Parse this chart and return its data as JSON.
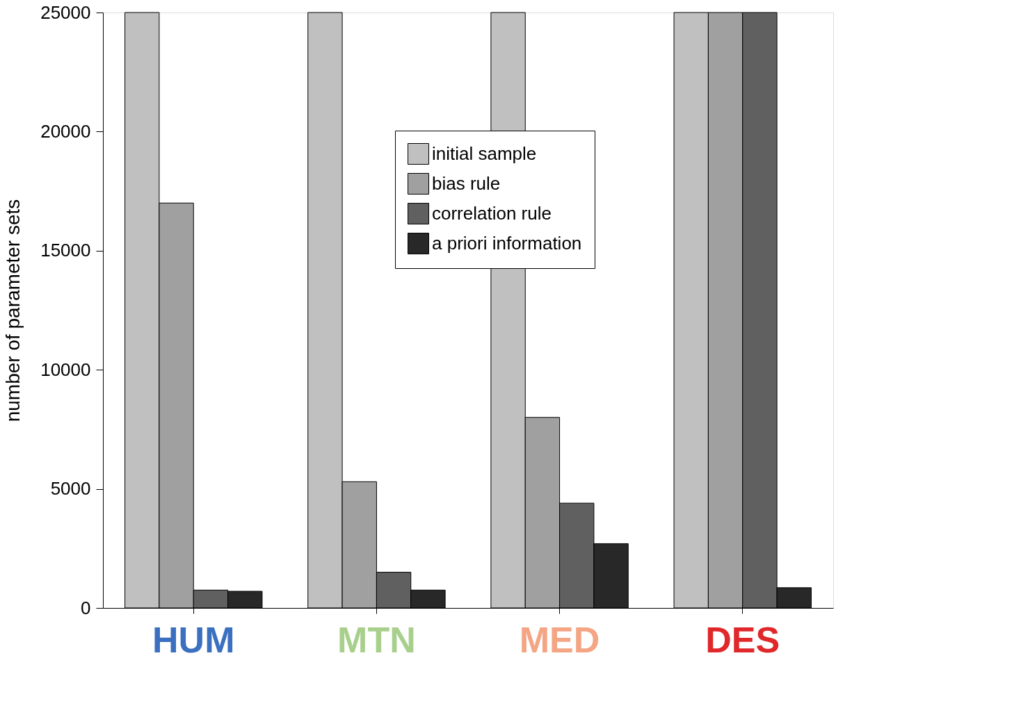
{
  "chart_data": {
    "type": "bar",
    "ylabel": "number of parameter sets",
    "categories": [
      "HUM",
      "MTN",
      "MED",
      "DES"
    ],
    "series": [
      {
        "name": "initial sample",
        "color": "#c0c0c0",
        "values": [
          25000,
          25000,
          25000,
          25000
        ]
      },
      {
        "name": "bias rule",
        "color": "#a0a0a0",
        "values": [
          17000,
          5300,
          8000,
          25000
        ]
      },
      {
        "name": "correlation rule",
        "color": "#606060",
        "values": [
          750,
          1500,
          4400,
          25000
        ]
      },
      {
        "name": "a priori information",
        "color": "#282828",
        "values": [
          700,
          750,
          2700,
          850
        ]
      }
    ],
    "ylim": [
      0,
      25000
    ],
    "yticks": [
      0,
      5000,
      10000,
      15000,
      20000,
      25000
    ],
    "grid": false,
    "legend": "top"
  }
}
